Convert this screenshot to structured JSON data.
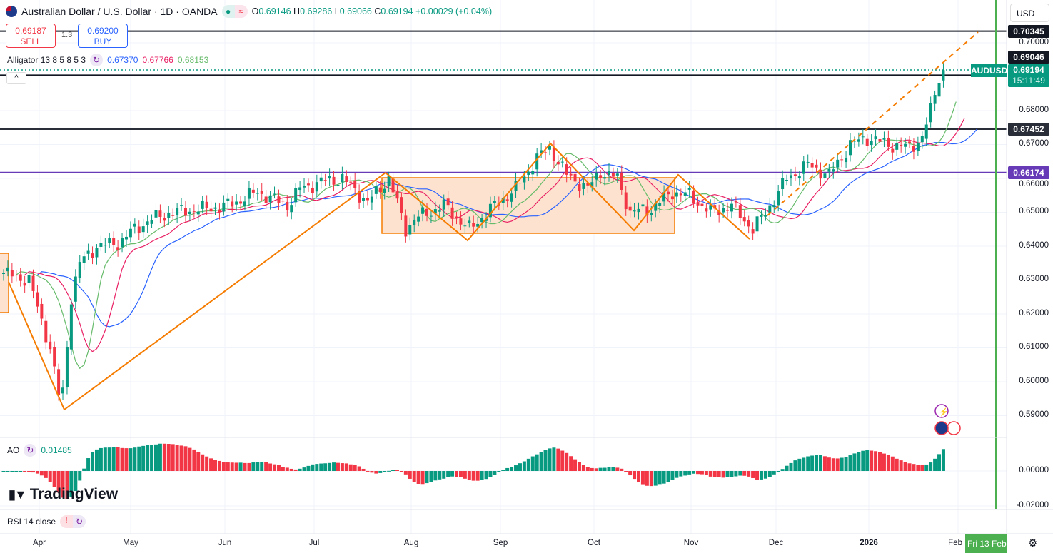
{
  "header": {
    "title": "Australian Dollar / U.S. Dollar · 1D · OANDA",
    "o_label": "O",
    "o": "0.69146",
    "h_label": "H",
    "h": "0.69286",
    "l_label": "L",
    "l": "0.69066",
    "c_label": "C",
    "c": "0.69194",
    "change": "+0.00029 (+0.04%)"
  },
  "trade": {
    "sell_price": "0.69187",
    "sell_label": "SELL",
    "spread": "1.3",
    "buy_price": "0.69200",
    "buy_label": "BUY"
  },
  "alligator": {
    "label": "Alligator 13 8 5 8 5 3",
    "jaw": "0.67370",
    "teeth": "0.67766",
    "lips": "0.68153"
  },
  "ao": {
    "label": "AO",
    "value": "0.01485"
  },
  "rsi": {
    "label": "RSI 14 close",
    "warn": "!"
  },
  "currency": "USD",
  "symbol_tag": "AUDUSD",
  "last_price": "0.69194",
  "countdown": "15:11:49",
  "levels": [
    {
      "v": "0.70345",
      "color": "#131722"
    },
    {
      "v": "0.69046",
      "color": "#131722"
    },
    {
      "v": "0.67452",
      "color": "#2a2e39"
    },
    {
      "v": "0.66174",
      "color": "#673ab7"
    }
  ],
  "price_ticks": [
    "0.70000",
    "0.68000",
    "0.67000",
    "0.66000",
    "0.65000",
    "0.64000",
    "0.63000",
    "0.62000",
    "0.61000",
    "0.60000",
    "0.59000"
  ],
  "ao_ticks": [
    "0.00000",
    "-0.02000"
  ],
  "time_ticks": [
    "Apr",
    "May",
    "Jun",
    "Jul",
    "Aug",
    "Sep",
    "Oct",
    "Nov",
    "Dec",
    "2026",
    "Feb"
  ],
  "crosshair_date": "Fri 13 Feb",
  "brand": "TradingView",
  "colors": {
    "up": "#089981",
    "down": "#f23645",
    "jaw": "#2962ff",
    "teeth": "#e91e63",
    "lips": "#66bb6a",
    "drawing": "#f57c00"
  },
  "chart_data": {
    "type": "candlestick",
    "title": "Australian Dollar / U.S. Dollar · 1D · OANDA",
    "ylim": [
      0.585,
      0.706
    ],
    "close_anchors": [
      [
        0,
        0.632
      ],
      [
        6,
        0.63
      ],
      [
        11,
        0.61
      ],
      [
        13,
        0.596
      ],
      [
        14,
        0.597
      ],
      [
        16,
        0.625
      ],
      [
        18,
        0.635
      ],
      [
        22,
        0.64
      ],
      [
        27,
        0.641
      ],
      [
        31,
        0.645
      ],
      [
        35,
        0.648
      ],
      [
        40,
        0.65
      ],
      [
        47,
        0.651
      ],
      [
        53,
        0.652
      ],
      [
        60,
        0.656
      ],
      [
        67,
        0.652
      ],
      [
        70,
        0.657
      ],
      [
        75,
        0.659
      ],
      [
        80,
        0.66
      ],
      [
        86,
        0.653
      ],
      [
        91,
        0.66
      ],
      [
        95,
        0.645
      ],
      [
        97,
        0.648
      ],
      [
        104,
        0.652
      ],
      [
        110,
        0.645
      ],
      [
        116,
        0.652
      ],
      [
        121,
        0.657
      ],
      [
        126,
        0.666
      ],
      [
        129,
        0.669
      ],
      [
        133,
        0.661
      ],
      [
        138,
        0.657
      ],
      [
        141,
        0.662
      ],
      [
        145,
        0.66
      ],
      [
        148,
        0.65
      ],
      [
        153,
        0.651
      ],
      [
        158,
        0.656
      ],
      [
        162,
        0.655
      ],
      [
        167,
        0.65
      ],
      [
        172,
        0.652
      ],
      [
        177,
        0.645
      ],
      [
        180,
        0.65
      ],
      [
        185,
        0.66
      ],
      [
        190,
        0.664
      ],
      [
        195,
        0.661
      ],
      [
        200,
        0.67
      ],
      [
        204,
        0.672
      ],
      [
        209,
        0.67
      ],
      [
        214,
        0.669
      ],
      [
        217,
        0.672
      ],
      [
        219,
        0.68
      ],
      [
        221,
        0.69
      ],
      [
        222,
        0.6919
      ]
    ]
  }
}
